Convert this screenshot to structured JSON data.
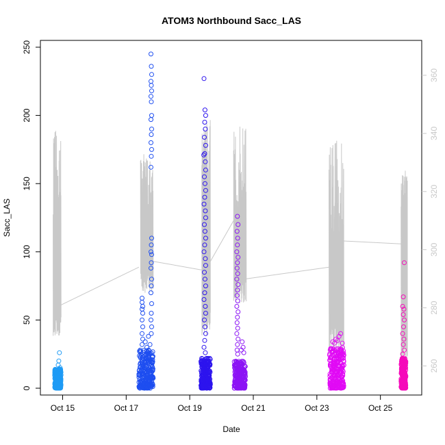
{
  "chart_data": {
    "type": "scatter",
    "title": "ATOM3 Northbound Sacc_LAS",
    "xlabel": "Date",
    "ylabel": "Sacc_LAS",
    "x_ticks": [
      "Oct 15",
      "Oct 17",
      "Oct 19",
      "Oct 21",
      "Oct 23",
      "Oct 25"
    ],
    "x_tick_days": [
      15,
      17,
      19,
      21,
      23,
      25
    ],
    "xlim_days": [
      14.3,
      26.3
    ],
    "ylim": [
      -5,
      255
    ],
    "y_ticks": [
      0,
      50,
      100,
      150,
      200,
      250
    ],
    "y2lim": [
      250,
      372
    ],
    "y2_ticks": [
      260,
      280,
      300,
      320,
      340,
      360
    ],
    "grid": false,
    "legend": "none",
    "marker": "open-circle",
    "secondary_line_color": "#c8c8c8",
    "series": [
      {
        "color": "#1e9bf5",
        "day_start": 14.75,
        "day_end": 14.95,
        "base_max": 14,
        "outliers": [
          [
            14.9,
            26
          ],
          [
            14.88,
            20
          ],
          [
            14.86,
            17
          ],
          [
            14.92,
            15
          ],
          [
            14.8,
            13
          ]
        ]
      },
      {
        "color": "#1e4ef0",
        "day_start": 17.4,
        "day_end": 17.85,
        "base_max": 28,
        "outliers": [
          [
            17.78,
            245
          ],
          [
            17.79,
            236
          ],
          [
            17.8,
            230
          ],
          [
            17.78,
            225
          ],
          [
            17.79,
            222
          ],
          [
            17.8,
            218
          ],
          [
            17.78,
            214
          ],
          [
            17.79,
            210
          ],
          [
            17.8,
            200
          ],
          [
            17.78,
            197
          ],
          [
            17.8,
            190
          ],
          [
            17.79,
            186
          ],
          [
            17.78,
            180
          ],
          [
            17.8,
            175
          ],
          [
            17.79,
            170
          ],
          [
            17.78,
            162
          ],
          [
            17.8,
            110
          ],
          [
            17.79,
            105
          ],
          [
            17.78,
            100
          ],
          [
            17.8,
            98
          ],
          [
            17.79,
            92
          ],
          [
            17.78,
            88
          ],
          [
            17.8,
            80
          ],
          [
            17.79,
            75
          ],
          [
            17.78,
            70
          ],
          [
            17.8,
            62
          ],
          [
            17.79,
            55
          ],
          [
            17.78,
            50
          ],
          [
            17.8,
            45
          ],
          [
            17.79,
            40
          ],
          [
            17.5,
            66
          ],
          [
            17.5,
            63
          ],
          [
            17.52,
            60
          ],
          [
            17.5,
            58
          ],
          [
            17.52,
            55
          ],
          [
            17.5,
            50
          ],
          [
            17.52,
            45
          ],
          [
            17.5,
            40
          ],
          [
            17.52,
            36
          ],
          [
            17.5,
            32
          ],
          [
            17.65,
            30
          ],
          [
            17.7,
            38
          ],
          [
            17.6,
            34
          ],
          [
            17.75,
            32
          ]
        ]
      },
      {
        "color": "#2d14ee",
        "day_start": 19.35,
        "day_end": 19.65,
        "base_max": 22,
        "outliers": [
          [
            19.45,
            227
          ],
          [
            19.48,
            204
          ],
          [
            19.5,
            200
          ],
          [
            19.47,
            195
          ],
          [
            19.49,
            190
          ],
          [
            19.46,
            184
          ],
          [
            19.5,
            178
          ],
          [
            19.47,
            172
          ],
          [
            19.44,
            171
          ],
          [
            19.49,
            166
          ],
          [
            19.5,
            160
          ],
          [
            19.46,
            155
          ],
          [
            19.48,
            150
          ],
          [
            19.5,
            145
          ],
          [
            19.47,
            140
          ],
          [
            19.45,
            135
          ],
          [
            19.49,
            130
          ],
          [
            19.5,
            125
          ],
          [
            19.46,
            120
          ],
          [
            19.48,
            115
          ],
          [
            19.5,
            110
          ],
          [
            19.47,
            105
          ],
          [
            19.45,
            100
          ],
          [
            19.49,
            95
          ],
          [
            19.5,
            90
          ],
          [
            19.46,
            85
          ],
          [
            19.48,
            80
          ],
          [
            19.5,
            75
          ],
          [
            19.47,
            70
          ],
          [
            19.45,
            65
          ],
          [
            19.49,
            60
          ],
          [
            19.5,
            55
          ],
          [
            19.46,
            50
          ],
          [
            19.48,
            45
          ],
          [
            19.5,
            40
          ],
          [
            19.47,
            35
          ],
          [
            19.45,
            30
          ],
          [
            19.49,
            26
          ]
        ]
      },
      {
        "color": "#8c14f5",
        "day_start": 20.4,
        "day_end": 20.75,
        "base_max": 20,
        "outliers": [
          [
            20.5,
            126
          ],
          [
            20.52,
            120
          ],
          [
            20.49,
            115
          ],
          [
            20.51,
            110
          ],
          [
            20.5,
            105
          ],
          [
            20.48,
            100
          ],
          [
            20.52,
            96
          ],
          [
            20.5,
            92
          ],
          [
            20.49,
            88
          ],
          [
            20.51,
            84
          ],
          [
            20.48,
            80
          ],
          [
            20.52,
            76
          ],
          [
            20.5,
            72
          ],
          [
            20.49,
            68
          ],
          [
            20.51,
            64
          ],
          [
            20.48,
            60
          ],
          [
            20.52,
            56
          ],
          [
            20.5,
            52
          ],
          [
            20.49,
            48
          ],
          [
            20.51,
            44
          ],
          [
            20.48,
            40
          ],
          [
            20.52,
            36
          ],
          [
            20.5,
            32
          ],
          [
            20.49,
            28
          ],
          [
            20.51,
            25
          ],
          [
            20.65,
            34
          ],
          [
            20.68,
            30
          ],
          [
            20.62,
            28
          ],
          [
            20.7,
            26
          ]
        ]
      },
      {
        "color": "#e10af5",
        "day_start": 23.4,
        "day_end": 23.85,
        "base_max": 30,
        "outliers": [
          [
            23.5,
            34
          ],
          [
            23.6,
            36
          ],
          [
            23.7,
            38
          ],
          [
            23.75,
            40
          ],
          [
            23.55,
            33
          ],
          [
            23.65,
            35
          ],
          [
            23.8,
            33
          ]
        ]
      },
      {
        "color": "#f50aba",
        "day_start": 25.65,
        "day_end": 25.8,
        "base_max": 22,
        "outliers": [
          [
            25.75,
            92
          ],
          [
            25.72,
            67
          ],
          [
            25.7,
            60
          ],
          [
            25.74,
            58
          ],
          [
            25.72,
            54
          ],
          [
            25.75,
            50
          ],
          [
            25.73,
            45
          ],
          [
            25.7,
            40
          ],
          [
            25.74,
            36
          ],
          [
            25.72,
            32
          ],
          [
            25.75,
            28
          ],
          [
            25.7,
            25
          ]
        ]
      }
    ],
    "secondary_line": {
      "axis": "right",
      "clusters": [
        {
          "day_start": 14.7,
          "day_end": 14.95,
          "min": 270,
          "max": 341
        },
        {
          "day_start": 17.45,
          "day_end": 17.85,
          "min": 285,
          "max": 333
        },
        {
          "day_start": 19.38,
          "day_end": 19.65,
          "min": 270,
          "max": 345
        },
        {
          "day_start": 20.38,
          "day_end": 20.78,
          "min": 280,
          "max": 343
        },
        {
          "day_start": 23.38,
          "day_end": 23.85,
          "min": 262,
          "max": 338
        },
        {
          "day_start": 25.65,
          "day_end": 25.85,
          "min": 262,
          "max": 328
        }
      ],
      "connectors": [
        [
          [
            14.95,
            281
          ],
          [
            17.4,
            294
          ]
        ],
        [
          [
            17.85,
            296
          ],
          [
            19.38,
            293
          ]
        ],
        [
          [
            19.65,
            296
          ],
          [
            20.38,
            310
          ]
        ],
        [
          [
            20.78,
            290
          ],
          [
            23.38,
            294
          ]
        ],
        [
          [
            23.85,
            303
          ],
          [
            25.65,
            302
          ]
        ]
      ]
    }
  }
}
